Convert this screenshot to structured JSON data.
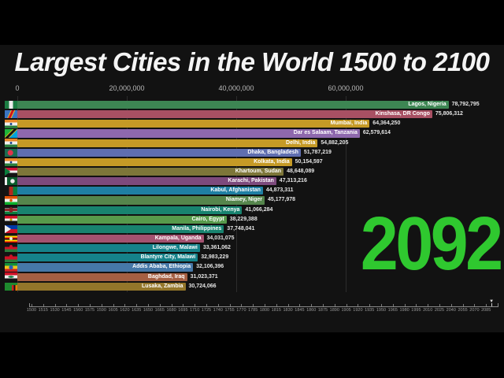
{
  "frame": {
    "background": "#000000",
    "canvas_background": "#121212"
  },
  "chart_data": {
    "type": "bar",
    "orientation": "horizontal",
    "title": "Largest Cities in the World 1500 to 2100",
    "year": "2092",
    "year_color": "#2fc82f",
    "x_axis": {
      "ticks": [
        "0",
        "20,000,000",
        "40,000,000",
        "60,000,000"
      ],
      "tick_values": [
        0,
        20000000,
        40000000,
        60000000
      ],
      "max_value": 88500000,
      "grid": true
    },
    "bars": [
      {
        "label": "Lagos, Nigeria",
        "value": 78792795,
        "value_text": "78,792,795",
        "country": "nigeria",
        "color": "#3d8653"
      },
      {
        "label": "Kinshasa, DR Congo",
        "value": 75806312,
        "value_text": "75,806,312",
        "country": "dr-congo",
        "color": "#a85063"
      },
      {
        "label": "Mumbai, India",
        "value": 64364250,
        "value_text": "64,364,250",
        "country": "india",
        "color": "#c59a26"
      },
      {
        "label": "Dar es Salaam, Tanzania",
        "value": 62579614,
        "value_text": "62,579,614",
        "country": "tanzania",
        "color": "#8e68ad"
      },
      {
        "label": "Delhi, India",
        "value": 54882205,
        "value_text": "54,882,205",
        "country": "india",
        "color": "#c59a26"
      },
      {
        "label": "Dhaka, Bangladesh",
        "value": 51787219,
        "value_text": "51,787,219",
        "country": "bangladesh",
        "color": "#5f6eb0"
      },
      {
        "label": "Kolkata, India",
        "value": 50154597,
        "value_text": "50,154,597",
        "country": "india",
        "color": "#c59a26"
      },
      {
        "label": "Khartoum, Sudan",
        "value": 48648089,
        "value_text": "48,648,089",
        "country": "sudan",
        "color": "#7d7639"
      },
      {
        "label": "Karachi, Pakistan",
        "value": 47313216,
        "value_text": "47,313,216",
        "country": "pakistan",
        "color": "#7d4a7d"
      },
      {
        "label": "Kabul, Afghanistan",
        "value": 44873311,
        "value_text": "44,873,311",
        "country": "afghanistan",
        "color": "#1f7fa3"
      },
      {
        "label": "Niamey, Niger",
        "value": 45177978,
        "value_text": "45,177,978",
        "country": "niger",
        "color": "#55854c"
      },
      {
        "label": "Nairobi, Kenya",
        "value": 41066284,
        "value_text": "41,066,284",
        "country": "kenya",
        "color": "#18836f"
      },
      {
        "label": "Cairo, Egypt",
        "value": 38229388,
        "value_text": "38,229,388",
        "country": "egypt",
        "color": "#579a4b"
      },
      {
        "label": "Manila, Philippines",
        "value": 37748041,
        "value_text": "37,748,041",
        "country": "philippines",
        "color": "#18836f"
      },
      {
        "label": "Kampala, Uganda",
        "value": 34031075,
        "value_text": "34,031,075",
        "country": "uganda",
        "color": "#a35270"
      },
      {
        "label": "Lilongwe, Malawi",
        "value": 33361062,
        "value_text": "33,361,062",
        "country": "malawi",
        "color": "#15828a"
      },
      {
        "label": "Blantyre City, Malawi",
        "value": 32983229,
        "value_text": "32,983,229",
        "country": "malawi",
        "color": "#15828a"
      },
      {
        "label": "Addis Ababa, Ethiopia",
        "value": 32106396,
        "value_text": "32,106,396",
        "country": "ethiopia",
        "color": "#4678a8"
      },
      {
        "label": "Baghdad, Iraq",
        "value": 31023371,
        "value_text": "31,023,371",
        "country": "iraq",
        "color": "#a55f42"
      },
      {
        "label": "Lusaka, Zambia",
        "value": 30724066,
        "value_text": "30,724,066",
        "country": "zambia",
        "color": "#93762a"
      }
    ]
  },
  "timeline": {
    "start_year": 1500,
    "end_year": 2100,
    "step": 15,
    "thumb_year": 2092,
    "thumb_icon": "▼",
    "years": [
      "1500",
      "1515",
      "1530",
      "1545",
      "1560",
      "1575",
      "1590",
      "1605",
      "1620",
      "1635",
      "1650",
      "1665",
      "1680",
      "1695",
      "1710",
      "1725",
      "1740",
      "1755",
      "1770",
      "1785",
      "1800",
      "1815",
      "1830",
      "1845",
      "1860",
      "1875",
      "1890",
      "1905",
      "1920",
      "1935",
      "1950",
      "1965",
      "1980",
      "1995",
      "2010",
      "2025",
      "2040",
      "2055",
      "2070",
      "2085"
    ]
  }
}
